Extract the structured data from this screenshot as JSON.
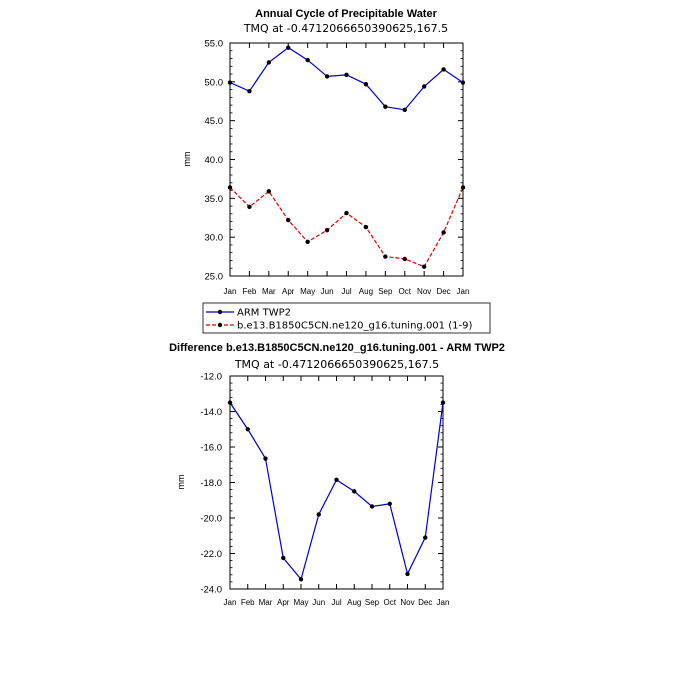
{
  "chart_data": [
    {
      "type": "line",
      "title": "Annual Cycle of Precipitable Water",
      "subtitle": "TMQ at -0.4712066650390625,167.5",
      "xlabel": "",
      "ylabel": "mm",
      "categories": [
        "Jan",
        "Feb",
        "Mar",
        "Apr",
        "May",
        "Jun",
        "Jul",
        "Aug",
        "Sep",
        "Oct",
        "Nov",
        "Dec",
        "Jan"
      ],
      "ylim": [
        25.0,
        55.0
      ],
      "yticks": [
        25.0,
        30.0,
        35.0,
        40.0,
        45.0,
        50.0,
        55.0
      ],
      "ytick_labels": [
        "25.0",
        "30.0",
        "35.0",
        "40.0",
        "45.0",
        "50.0",
        "55.0"
      ],
      "series": [
        {
          "name": "ARM TWP2",
          "color": "#0000cc",
          "dash": "solid",
          "values": [
            49.9,
            48.8,
            52.5,
            54.4,
            52.8,
            50.7,
            50.9,
            49.7,
            46.8,
            46.4,
            49.4,
            51.6,
            49.9
          ]
        },
        {
          "name": "b.e13.B1850C5CN.ne120_g16.tuning.001 (1-9)",
          "color": "#e00000",
          "dash": "dashed",
          "values": [
            36.4,
            33.9,
            35.9,
            32.2,
            29.4,
            30.9,
            33.1,
            31.3,
            27.5,
            27.2,
            26.2,
            30.6,
            36.4
          ]
        }
      ],
      "legend": [
        "ARM TWP2",
        "b.e13.B1850C5CN.ne120_g16.tuning.001 (1-9)"
      ]
    },
    {
      "type": "line",
      "title": "Difference b.e13.B1850C5CN.ne120_g16.tuning.001 - ARM TWP2",
      "subtitle": "TMQ at -0.4712066650390625,167.5",
      "xlabel": "",
      "ylabel": "mm",
      "categories": [
        "Jan",
        "Feb",
        "Mar",
        "Apr",
        "May",
        "Jun",
        "Jul",
        "Aug",
        "Sep",
        "Oct",
        "Nov",
        "Dec",
        "Jan"
      ],
      "ylim": [
        -24.0,
        -12.0
      ],
      "yticks": [
        -24.0,
        -22.0,
        -20.0,
        -18.0,
        -16.0,
        -14.0,
        -12.0
      ],
      "ytick_labels": [
        "-24.0",
        "-22.0",
        "-20.0",
        "-18.0",
        "-16.0",
        "-14.0",
        "-12.0"
      ],
      "series": [
        {
          "name": "Difference",
          "color": "#0000cc",
          "dash": "solid",
          "values": [
            -13.5,
            -15.0,
            -16.65,
            -22.25,
            -23.45,
            -19.8,
            -17.85,
            -18.5,
            -19.35,
            -19.2,
            -23.15,
            -21.1,
            -13.5
          ]
        }
      ]
    }
  ]
}
